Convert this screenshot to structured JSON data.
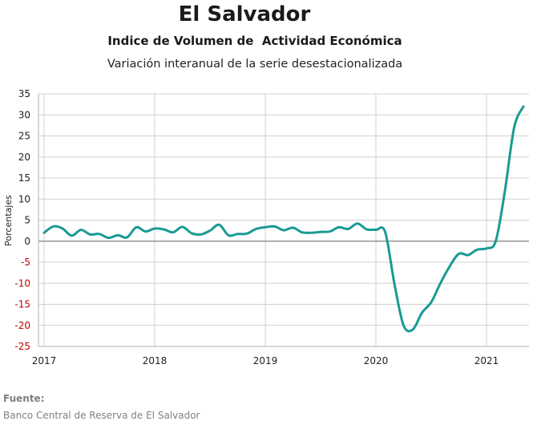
{
  "header": {
    "title": "El Salvador",
    "subtitle": "Indice de Volumen de  Actividad Económica",
    "subtitle2": "Variación interanual de la serie desestacionalizada"
  },
  "footer": {
    "source_label": "Fuente:",
    "source_text": "Banco Central de Reserva de El Salvador"
  },
  "colors": {
    "line": "#1a9a94",
    "negative_tick": "#c00000",
    "grid": "#d0d0d0",
    "zero_line": "#808080"
  },
  "chart_data": {
    "type": "line",
    "title": "El Salvador",
    "ylabel": "Porcentajes",
    "xlabel": "",
    "ylim": [
      -25,
      35
    ],
    "xlim": [
      "2017-01",
      "2021-05"
    ],
    "yticks": [
      35,
      30,
      25,
      20,
      15,
      10,
      5,
      0,
      -5,
      -10,
      -15,
      -20,
      -25
    ],
    "xticks": [
      "2017",
      "2018",
      "2019",
      "2020",
      "2021"
    ],
    "grid": true,
    "legend": "none",
    "series": [
      {
        "x": [
          "2017-01",
          "2017-02",
          "2017-03",
          "2017-04",
          "2017-05",
          "2017-06",
          "2017-07",
          "2017-08",
          "2017-09",
          "2017-10",
          "2017-11",
          "2017-12",
          "2018-01",
          "2018-02",
          "2018-03",
          "2018-04",
          "2018-05",
          "2018-06",
          "2018-07",
          "2018-08",
          "2018-09",
          "2018-10",
          "2018-11",
          "2018-12",
          "2019-01",
          "2019-02",
          "2019-03",
          "2019-04",
          "2019-05",
          "2019-06",
          "2019-07",
          "2019-08",
          "2019-09",
          "2019-10",
          "2019-11",
          "2019-12",
          "2020-01",
          "2020-02",
          "2020-03",
          "2020-04",
          "2020-05",
          "2020-06",
          "2020-07",
          "2020-08",
          "2020-09",
          "2020-10",
          "2020-11",
          "2020-12",
          "2021-01",
          "2021-02",
          "2021-03",
          "2021-04",
          "2021-05"
        ],
        "values": [
          2.0,
          3.5,
          3.0,
          1.3,
          2.7,
          1.6,
          1.7,
          0.8,
          1.4,
          0.9,
          3.3,
          2.3,
          3.0,
          2.8,
          2.1,
          3.4,
          1.9,
          1.6,
          2.5,
          3.9,
          1.4,
          1.7,
          1.8,
          2.9,
          3.3,
          3.5,
          2.6,
          3.2,
          2.1,
          2.0,
          2.2,
          2.3,
          3.3,
          2.9,
          4.2,
          2.8,
          2.7,
          2.2,
          -10.0,
          -20.0,
          -21.0,
          -17.0,
          -14.5,
          -10.0,
          -6.0,
          -3.0,
          -3.3,
          -2.0,
          -1.7,
          0.0,
          12.0,
          27.0,
          32.0
        ]
      }
    ]
  }
}
